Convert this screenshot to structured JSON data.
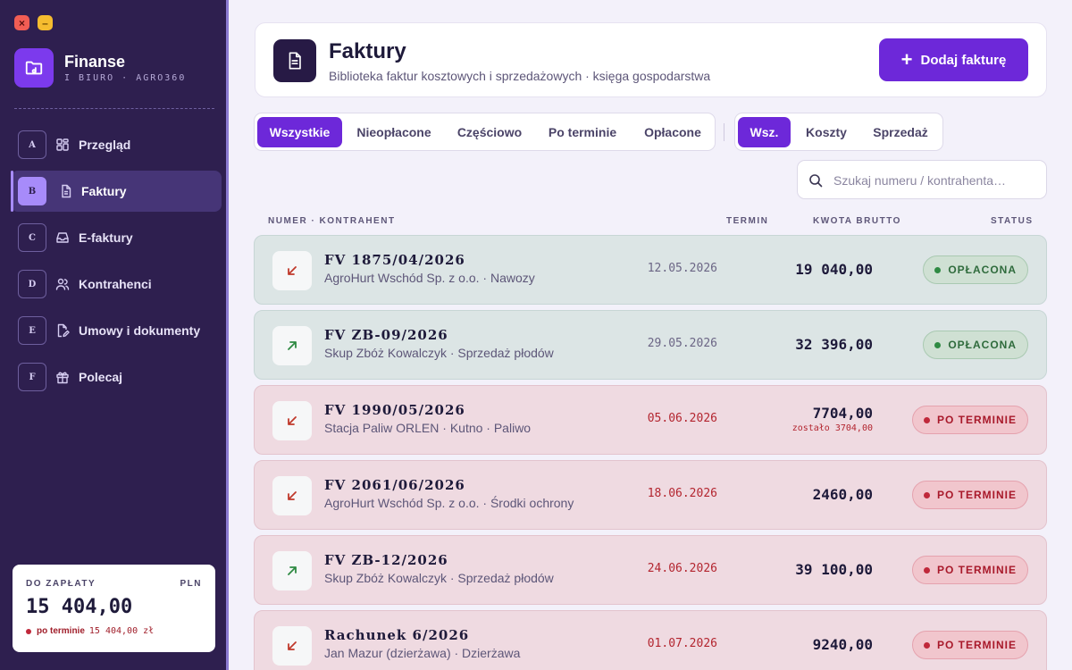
{
  "window": {
    "close_glyph": "×",
    "minimize_glyph": "–"
  },
  "brand": {
    "name": "Finanse",
    "subtitle": "I BIURO · AGRO360",
    "icon": "folder-icon"
  },
  "sidebar": {
    "items": [
      {
        "key": "A",
        "label": "Przegląd",
        "icon": "dashboard-icon",
        "active": false
      },
      {
        "key": "B",
        "label": "Faktury",
        "icon": "document-icon",
        "active": true
      },
      {
        "key": "C",
        "label": "E-faktury",
        "icon": "inbox-icon",
        "active": false
      },
      {
        "key": "D",
        "label": "Kontrahenci",
        "icon": "users-icon",
        "active": false
      },
      {
        "key": "E",
        "label": "Umowy i dokumenty",
        "icon": "signed-document-icon",
        "active": false
      },
      {
        "key": "F",
        "label": "Polecaj",
        "icon": "gift-icon",
        "active": false
      }
    ],
    "due": {
      "title": "DO ZAPŁATY",
      "currency": "PLN",
      "amount": "15 404,00",
      "overdue_label": "po terminie",
      "overdue_amount": "15 404,00 zł"
    }
  },
  "header": {
    "title": "Faktury",
    "subtitle": "Biblioteka faktur kosztowych i sprzedażowych · księga gospodarstwa",
    "icon": "document-icon",
    "add_label": "Dodaj fakturę",
    "add_glyph": "+"
  },
  "status_tabs": [
    {
      "label": "Wszystkie",
      "active": true
    },
    {
      "label": "Nieopłacone",
      "active": false
    },
    {
      "label": "Częściowo",
      "active": false
    },
    {
      "label": "Po terminie",
      "active": false
    },
    {
      "label": "Opłacone",
      "active": false
    }
  ],
  "type_tabs": [
    {
      "label": "Wsz.",
      "active": true
    },
    {
      "label": "Koszty",
      "active": false
    },
    {
      "label": "Sprzedaż",
      "active": false
    }
  ],
  "search": {
    "placeholder": "Szukaj numeru / kontrahenta…",
    "value": "",
    "icon": "search-icon"
  },
  "columns": {
    "number": "NUMER · KONTRAHENT",
    "due": "TERMIN",
    "amount": "KWOTA BRUTTO",
    "status": "STATUS"
  },
  "colors": {
    "accent": "#6d28d9",
    "sidebar_bg": "#2e1f4f",
    "paid_row": "#dce5e5",
    "overdue_row": "#efdae1",
    "cost_arrow": "#c0392b",
    "sale_arrow": "#2f8a43"
  },
  "invoices": [
    {
      "number": "FV 1875/04/2026",
      "party": "AgroHurt Wschód Sp. z o.o. · Nawozy",
      "due": "12.05.2026",
      "amount": "19 040,00",
      "remaining": "",
      "status": "OPŁACONA",
      "state": "paid",
      "direction": "cost",
      "icon": "arrow-down-left-icon"
    },
    {
      "number": "FV ZB-09/2026",
      "party": "Skup Zbóż Kowalczyk · Sprzedaż płodów",
      "due": "29.05.2026",
      "amount": "32 396,00",
      "remaining": "",
      "status": "OPŁACONA",
      "state": "paid",
      "direction": "sale",
      "icon": "arrow-up-right-icon"
    },
    {
      "number": "FV 1990/05/2026",
      "party": "Stacja Paliw ORLEN · Kutno · Paliwo",
      "due": "05.06.2026",
      "amount": "7704,00",
      "remaining": "zostało 3704,00",
      "status": "PO TERMINIE",
      "state": "overdue",
      "direction": "cost",
      "icon": "arrow-down-left-icon"
    },
    {
      "number": "FV 2061/06/2026",
      "party": "AgroHurt Wschód Sp. z o.o. · Środki ochrony",
      "due": "18.06.2026",
      "amount": "2460,00",
      "remaining": "",
      "status": "PO TERMINIE",
      "state": "overdue",
      "direction": "cost",
      "icon": "arrow-down-left-icon"
    },
    {
      "number": "FV ZB-12/2026",
      "party": "Skup Zbóż Kowalczyk · Sprzedaż płodów",
      "due": "24.06.2026",
      "amount": "39 100,00",
      "remaining": "",
      "status": "PO TERMINIE",
      "state": "overdue",
      "direction": "sale",
      "icon": "arrow-up-right-icon"
    },
    {
      "number": "Rachunek 6/2026",
      "party": "Jan Mazur (dzierżawa) · Dzierżawa",
      "due": "01.07.2026",
      "amount": "9240,00",
      "remaining": "",
      "status": "PO TERMINIE",
      "state": "overdue",
      "direction": "cost",
      "icon": "arrow-down-left-icon"
    }
  ]
}
